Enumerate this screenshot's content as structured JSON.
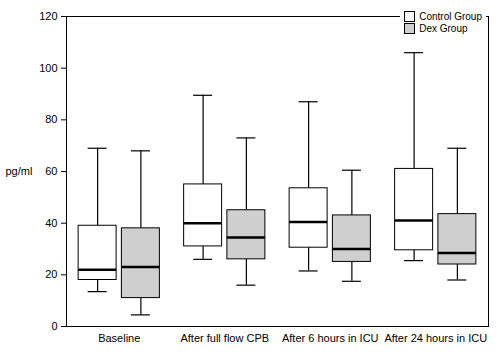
{
  "chart_data": {
    "type": "box",
    "ylabel": "pg/ml",
    "categories": [
      "Baseline",
      "After full flow CPB",
      "After 6 hours in ICU",
      "After 24 hours in ICU"
    ],
    "series": [
      {
        "name": "Control Group",
        "color": "#ffffff",
        "whisker_low": [
          13.5,
          26,
          21.5,
          25.5
        ],
        "q1": [
          18,
          31,
          30.5,
          29.5
        ],
        "median": [
          22,
          40,
          40.5,
          41
        ],
        "q3": [
          39,
          55,
          53.5,
          61
        ],
        "whisker_high": [
          69,
          89.5,
          87,
          106
        ]
      },
      {
        "name": "Dex Group",
        "color": "#cfcfcf",
        "whisker_low": [
          4.5,
          16,
          17.5,
          18
        ],
        "q1": [
          11,
          26,
          25,
          24
        ],
        "median": [
          23,
          34.5,
          30,
          28.5
        ],
        "q3": [
          38,
          45,
          43,
          43.5
        ],
        "whisker_high": [
          68,
          73,
          60.5,
          69
        ]
      }
    ],
    "ylim": [
      0,
      120
    ],
    "yticks": [
      0,
      20,
      40,
      60,
      80,
      100,
      120
    ],
    "grid": false,
    "legend": "top-right"
  }
}
